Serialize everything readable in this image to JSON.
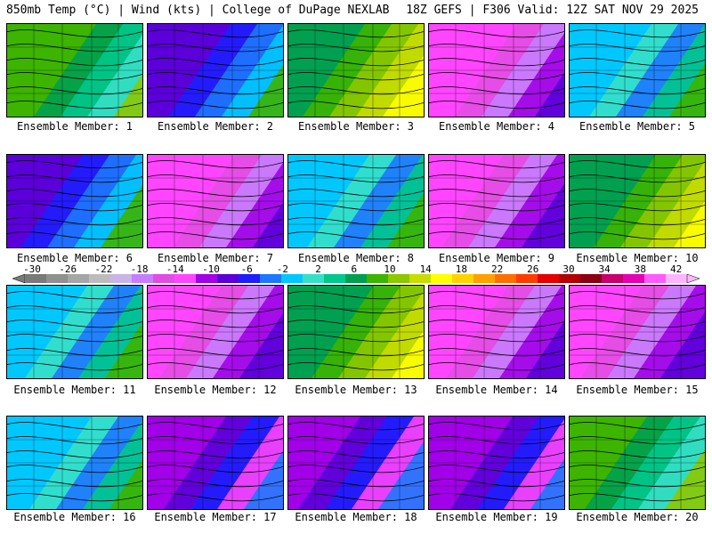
{
  "header": {
    "left_title": "850mb Temp (°C) | Wind (kts) | College of DuPage NEXLAB",
    "right_title": "18Z GEFS | F306 Valid: 12Z SAT NOV 29 2025"
  },
  "colorbar": {
    "ticks": [
      "-30",
      "-26",
      "-22",
      "-18",
      "-14",
      "-10",
      "-6",
      "-2",
      "2",
      "6",
      "10",
      "14",
      "18",
      "22",
      "26",
      "30",
      "34",
      "38",
      "42"
    ],
    "colors": [
      "#7a7a7a",
      "#909090",
      "#a6a6a6",
      "#bcbcbc",
      "#c8b4e6",
      "#c77dff",
      "#e34ce3",
      "#ff45ff",
      "#a100e8",
      "#5b00d9",
      "#1e1eff",
      "#1e78ff",
      "#00c8ff",
      "#36e0c8",
      "#00c88c",
      "#00a050",
      "#3cb400",
      "#8cc800",
      "#c8dc00",
      "#ffff00",
      "#ffd200",
      "#ffa000",
      "#ff6e00",
      "#ff3c00",
      "#e60000",
      "#b40000",
      "#8c0014",
      "#c8006e",
      "#e600b4",
      "#ff5aff",
      "#ffb4ff"
    ]
  },
  "panels": [
    {
      "label": "Ensemble Member: 1",
      "scheme": "green"
    },
    {
      "label": "Ensemble Member: 2",
      "scheme": "purple-green"
    },
    {
      "label": "Ensemble Member: 3",
      "scheme": "green-yellow"
    },
    {
      "label": "Ensemble Member: 4",
      "scheme": "magenta"
    },
    {
      "label": "Ensemble Member: 5",
      "scheme": "cyan"
    },
    {
      "label": "Ensemble Member: 6",
      "scheme": "purple-green"
    },
    {
      "label": "Ensemble Member: 7",
      "scheme": "magenta"
    },
    {
      "label": "Ensemble Member: 8",
      "scheme": "cyan"
    },
    {
      "label": "Ensemble Member: 9",
      "scheme": "magenta"
    },
    {
      "label": "Ensemble Member: 10",
      "scheme": "green-yellow"
    },
    {
      "label": "Ensemble Member: 11",
      "scheme": "cyan"
    },
    {
      "label": "Ensemble Member: 12",
      "scheme": "magenta"
    },
    {
      "label": "Ensemble Member: 13",
      "scheme": "green-yellow"
    },
    {
      "label": "Ensemble Member: 14",
      "scheme": "magenta"
    },
    {
      "label": "Ensemble Member: 15",
      "scheme": "magenta"
    },
    {
      "label": "Ensemble Member: 16",
      "scheme": "cyan"
    },
    {
      "label": "Ensemble Member: 17",
      "scheme": "purple"
    },
    {
      "label": "Ensemble Member: 18",
      "scheme": "purple"
    },
    {
      "label": "Ensemble Member: 19",
      "scheme": "purple"
    },
    {
      "label": "Ensemble Member: 20",
      "scheme": "green"
    }
  ]
}
